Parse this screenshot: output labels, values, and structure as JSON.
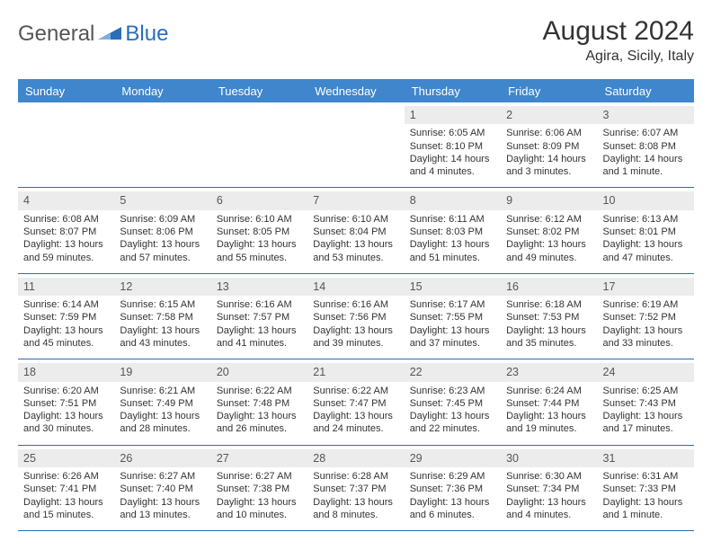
{
  "brand": {
    "part1": "General",
    "part2": "Blue"
  },
  "title": "August 2024",
  "location": "Agira, Sicily, Italy",
  "colors": {
    "header_bg": "#3f86cc",
    "rule": "#2a6db8",
    "band": "#ececec"
  },
  "daynames": [
    "Sunday",
    "Monday",
    "Tuesday",
    "Wednesday",
    "Thursday",
    "Friday",
    "Saturday"
  ],
  "weeks": [
    [
      {
        "empty": true
      },
      {
        "empty": true
      },
      {
        "empty": true
      },
      {
        "empty": true
      },
      {
        "n": "1",
        "sr": "Sunrise: 6:05 AM",
        "ss": "Sunset: 8:10 PM",
        "d1": "Daylight: 14 hours",
        "d2": "and 4 minutes."
      },
      {
        "n": "2",
        "sr": "Sunrise: 6:06 AM",
        "ss": "Sunset: 8:09 PM",
        "d1": "Daylight: 14 hours",
        "d2": "and 3 minutes."
      },
      {
        "n": "3",
        "sr": "Sunrise: 6:07 AM",
        "ss": "Sunset: 8:08 PM",
        "d1": "Daylight: 14 hours",
        "d2": "and 1 minute."
      }
    ],
    [
      {
        "n": "4",
        "sr": "Sunrise: 6:08 AM",
        "ss": "Sunset: 8:07 PM",
        "d1": "Daylight: 13 hours",
        "d2": "and 59 minutes."
      },
      {
        "n": "5",
        "sr": "Sunrise: 6:09 AM",
        "ss": "Sunset: 8:06 PM",
        "d1": "Daylight: 13 hours",
        "d2": "and 57 minutes."
      },
      {
        "n": "6",
        "sr": "Sunrise: 6:10 AM",
        "ss": "Sunset: 8:05 PM",
        "d1": "Daylight: 13 hours",
        "d2": "and 55 minutes."
      },
      {
        "n": "7",
        "sr": "Sunrise: 6:10 AM",
        "ss": "Sunset: 8:04 PM",
        "d1": "Daylight: 13 hours",
        "d2": "and 53 minutes."
      },
      {
        "n": "8",
        "sr": "Sunrise: 6:11 AM",
        "ss": "Sunset: 8:03 PM",
        "d1": "Daylight: 13 hours",
        "d2": "and 51 minutes."
      },
      {
        "n": "9",
        "sr": "Sunrise: 6:12 AM",
        "ss": "Sunset: 8:02 PM",
        "d1": "Daylight: 13 hours",
        "d2": "and 49 minutes."
      },
      {
        "n": "10",
        "sr": "Sunrise: 6:13 AM",
        "ss": "Sunset: 8:01 PM",
        "d1": "Daylight: 13 hours",
        "d2": "and 47 minutes."
      }
    ],
    [
      {
        "n": "11",
        "sr": "Sunrise: 6:14 AM",
        "ss": "Sunset: 7:59 PM",
        "d1": "Daylight: 13 hours",
        "d2": "and 45 minutes."
      },
      {
        "n": "12",
        "sr": "Sunrise: 6:15 AM",
        "ss": "Sunset: 7:58 PM",
        "d1": "Daylight: 13 hours",
        "d2": "and 43 minutes."
      },
      {
        "n": "13",
        "sr": "Sunrise: 6:16 AM",
        "ss": "Sunset: 7:57 PM",
        "d1": "Daylight: 13 hours",
        "d2": "and 41 minutes."
      },
      {
        "n": "14",
        "sr": "Sunrise: 6:16 AM",
        "ss": "Sunset: 7:56 PM",
        "d1": "Daylight: 13 hours",
        "d2": "and 39 minutes."
      },
      {
        "n": "15",
        "sr": "Sunrise: 6:17 AM",
        "ss": "Sunset: 7:55 PM",
        "d1": "Daylight: 13 hours",
        "d2": "and 37 minutes."
      },
      {
        "n": "16",
        "sr": "Sunrise: 6:18 AM",
        "ss": "Sunset: 7:53 PM",
        "d1": "Daylight: 13 hours",
        "d2": "and 35 minutes."
      },
      {
        "n": "17",
        "sr": "Sunrise: 6:19 AM",
        "ss": "Sunset: 7:52 PM",
        "d1": "Daylight: 13 hours",
        "d2": "and 33 minutes."
      }
    ],
    [
      {
        "n": "18",
        "sr": "Sunrise: 6:20 AM",
        "ss": "Sunset: 7:51 PM",
        "d1": "Daylight: 13 hours",
        "d2": "and 30 minutes."
      },
      {
        "n": "19",
        "sr": "Sunrise: 6:21 AM",
        "ss": "Sunset: 7:49 PM",
        "d1": "Daylight: 13 hours",
        "d2": "and 28 minutes."
      },
      {
        "n": "20",
        "sr": "Sunrise: 6:22 AM",
        "ss": "Sunset: 7:48 PM",
        "d1": "Daylight: 13 hours",
        "d2": "and 26 minutes."
      },
      {
        "n": "21",
        "sr": "Sunrise: 6:22 AM",
        "ss": "Sunset: 7:47 PM",
        "d1": "Daylight: 13 hours",
        "d2": "and 24 minutes."
      },
      {
        "n": "22",
        "sr": "Sunrise: 6:23 AM",
        "ss": "Sunset: 7:45 PM",
        "d1": "Daylight: 13 hours",
        "d2": "and 22 minutes."
      },
      {
        "n": "23",
        "sr": "Sunrise: 6:24 AM",
        "ss": "Sunset: 7:44 PM",
        "d1": "Daylight: 13 hours",
        "d2": "and 19 minutes."
      },
      {
        "n": "24",
        "sr": "Sunrise: 6:25 AM",
        "ss": "Sunset: 7:43 PM",
        "d1": "Daylight: 13 hours",
        "d2": "and 17 minutes."
      }
    ],
    [
      {
        "n": "25",
        "sr": "Sunrise: 6:26 AM",
        "ss": "Sunset: 7:41 PM",
        "d1": "Daylight: 13 hours",
        "d2": "and 15 minutes."
      },
      {
        "n": "26",
        "sr": "Sunrise: 6:27 AM",
        "ss": "Sunset: 7:40 PM",
        "d1": "Daylight: 13 hours",
        "d2": "and 13 minutes."
      },
      {
        "n": "27",
        "sr": "Sunrise: 6:27 AM",
        "ss": "Sunset: 7:38 PM",
        "d1": "Daylight: 13 hours",
        "d2": "and 10 minutes."
      },
      {
        "n": "28",
        "sr": "Sunrise: 6:28 AM",
        "ss": "Sunset: 7:37 PM",
        "d1": "Daylight: 13 hours",
        "d2": "and 8 minutes."
      },
      {
        "n": "29",
        "sr": "Sunrise: 6:29 AM",
        "ss": "Sunset: 7:36 PM",
        "d1": "Daylight: 13 hours",
        "d2": "and 6 minutes."
      },
      {
        "n": "30",
        "sr": "Sunrise: 6:30 AM",
        "ss": "Sunset: 7:34 PM",
        "d1": "Daylight: 13 hours",
        "d2": "and 4 minutes."
      },
      {
        "n": "31",
        "sr": "Sunrise: 6:31 AM",
        "ss": "Sunset: 7:33 PM",
        "d1": "Daylight: 13 hours",
        "d2": "and 1 minute."
      }
    ]
  ]
}
